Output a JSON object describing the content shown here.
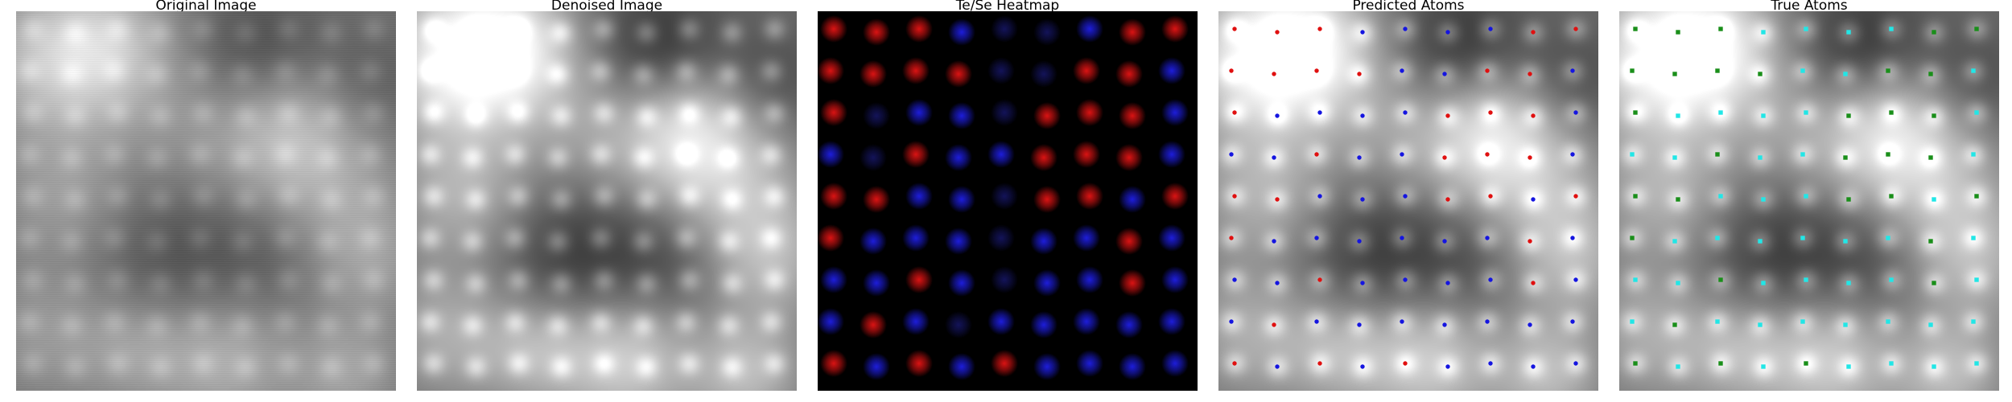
{
  "panels": [
    {
      "id": "original",
      "title": "Original Image"
    },
    {
      "id": "denoised",
      "title": "Denoised Image"
    },
    {
      "id": "heatmap",
      "title": "Te/Se Heatmap"
    },
    {
      "id": "predicted",
      "title": "Predicted Atoms"
    },
    {
      "id": "true",
      "title": "True Atoms"
    }
  ],
  "colors": {
    "te": "#e01010",
    "se": "#1515e0",
    "true_te": "#1a8f1a",
    "true_se": "#22e6e6",
    "background": "#000000"
  },
  "lattice": {
    "rows": [
      "RRRSBBSRR",
      "RRRRBBRRS",
      "RBSSBRRRS",
      "SBRSSRRRS",
      "RRSSBRRSR",
      "RSSSBSSRS",
      "SSRSBSSRS",
      "SRSBSSSSS",
      "RSRSRSSSS"
    ]
  }
}
